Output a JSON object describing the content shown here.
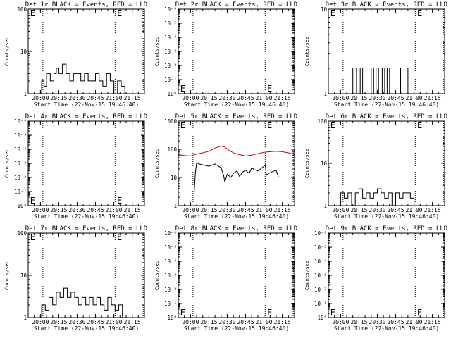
{
  "panel_x_tick_labels": [
    "20:00",
    "20:15",
    "20:30",
    "20:45",
    "21:00",
    "21:15"
  ],
  "colors": {
    "events": "#000000",
    "lld": "#cc0000",
    "axes": "#000000",
    "background": "#ffffff"
  },
  "chart_data": [
    {
      "type": "line",
      "title": "Det 1r BLACK = Events, RED = LLD",
      "xlabel": "Start Time (22-Nov-15 19:46:40)",
      "ylabel": "Counts/sec",
      "scale": "log",
      "xlim": [
        "19:50",
        "21:25"
      ],
      "ylim": [
        1,
        100
      ],
      "yticks": [
        "1",
        "10",
        "100"
      ],
      "x_tick_labels": [
        "20:00",
        "20:15",
        "20:30",
        "20:45",
        "21:00",
        "21:15"
      ],
      "vlines": [
        "20:02",
        "21:01",
        "21:24"
      ],
      "e_markers": [
        {
          "x": "19:51",
          "y": "top"
        },
        {
          "x": "21:02",
          "y": "top"
        }
      ],
      "series": [
        {
          "color": "#000000",
          "style": "steps",
          "x": [
            "19:59",
            "20:01",
            "20:03",
            "20:05",
            "20:08",
            "20:11",
            "20:13",
            "20:15",
            "20:18",
            "20:21",
            "20:24",
            "20:27",
            "20:30",
            "20:33",
            "20:36",
            "20:39",
            "20:42",
            "20:45",
            "20:48",
            "20:51",
            "20:54",
            "20:57",
            "21:00",
            "21:03",
            "21:06",
            "21:09"
          ],
          "y": [
            1,
            2,
            1.5,
            3,
            2,
            3,
            4,
            3,
            5,
            3,
            2,
            3,
            3,
            2,
            3,
            2,
            2,
            3,
            2,
            1.5,
            3,
            2,
            1,
            2,
            1.5,
            1
          ]
        }
      ]
    },
    {
      "type": "line",
      "title": "Det 2r BLACK = Events, RED = LLD",
      "xlabel": "Start Time (22-Nov-15 19:46:40)",
      "ylabel": "Counts/sec",
      "scale": "log",
      "xlim": [
        "19:50",
        "21:25"
      ],
      "ylim": [
        1,
        1000000
      ],
      "yticks": [
        "10⁰",
        "10⁻¹",
        "10⁻²",
        "10⁻³",
        "10⁻⁴",
        "10⁻⁵",
        "10⁻⁶"
      ],
      "x_tick_labels": [
        "20:00",
        "20:15",
        "20:30",
        "20:45",
        "21:00",
        "21:15"
      ],
      "vlines": [
        "20:02",
        "21:01",
        "21:24"
      ],
      "e_markers": [
        {
          "x": "19:51",
          "y": "bottom"
        },
        {
          "x": "21:02",
          "y": "bottom"
        }
      ],
      "series": []
    },
    {
      "type": "line",
      "title": "Det 3r BLACK = Events, RED = LLD",
      "xlabel": "Start Time (22-Nov-15 19:46:40)",
      "ylabel": "Counts/sec",
      "scale": "log",
      "xlim": [
        "19:50",
        "21:25"
      ],
      "ylim": [
        1,
        10
      ],
      "yticks": [
        "1",
        "10"
      ],
      "x_tick_labels": [
        "20:00",
        "20:15",
        "20:30",
        "20:45",
        "21:00",
        "21:15"
      ],
      "vlines": [
        "20:02",
        "21:01",
        "21:24"
      ],
      "e_markers": [
        {
          "x": "19:51",
          "y": "top"
        },
        {
          "x": "21:02",
          "y": "top"
        }
      ],
      "series": [
        {
          "color": "#000000",
          "style": "spikes",
          "x": [
            "20:10",
            "20:13",
            "20:16",
            "20:18",
            "20:25",
            "20:27",
            "20:29",
            "20:31",
            "20:34",
            "20:36",
            "20:38",
            "20:40",
            "20:49",
            "20:55"
          ],
          "y": [
            2,
            2,
            2,
            2,
            2,
            2,
            2,
            2,
            2,
            2,
            2,
            2,
            2,
            2
          ]
        }
      ]
    },
    {
      "type": "line",
      "title": "Det 4r BLACK = Events, RED = LLD",
      "xlabel": "Start Time (22-Nov-15 19:46:40)",
      "ylabel": "Counts/sec",
      "scale": "log",
      "xlim": [
        "19:50",
        "21:25"
      ],
      "ylim": [
        1,
        1000000
      ],
      "yticks": [
        "10⁰",
        "10⁻¹",
        "10⁻²",
        "10⁻³",
        "10⁻⁴",
        "10⁻⁵",
        "10⁻⁶"
      ],
      "x_tick_labels": [
        "20:00",
        "20:15",
        "20:30",
        "20:45",
        "21:00",
        "21:15"
      ],
      "vlines": [
        "20:02",
        "21:01",
        "21:24"
      ],
      "e_markers": [
        {
          "x": "19:51",
          "y": "bottom"
        },
        {
          "x": "21:02",
          "y": "bottom"
        }
      ],
      "series": []
    },
    {
      "type": "line",
      "title": "Det 5r BLACK = Events, RED = LLD",
      "xlabel": "Start Time (22-Nov-15 19:46:40)",
      "ylabel": "Counts/sec",
      "scale": "log",
      "xlim": [
        "19:50",
        "21:25"
      ],
      "ylim": [
        1,
        1000
      ],
      "yticks": [
        "1",
        "10",
        "100",
        "1000"
      ],
      "x_tick_labels": [
        "20:00",
        "20:15",
        "20:30",
        "20:45",
        "21:00",
        "21:15"
      ],
      "vlines": [
        "20:02",
        "21:01",
        "21:24"
      ],
      "e_markers": [
        {
          "x": "19:51",
          "y": "top"
        },
        {
          "x": "21:02",
          "y": "top"
        }
      ],
      "series": [
        {
          "color": "#cc0000",
          "style": "line",
          "x": [
            "19:50",
            "19:55",
            "20:00",
            "20:05",
            "20:10",
            "20:15",
            "20:20",
            "20:25",
            "20:28",
            "20:32",
            "20:36",
            "20:40",
            "20:45",
            "20:50",
            "20:55",
            "21:00",
            "21:05",
            "21:10",
            "21:15",
            "21:20",
            "21:25"
          ],
          "y": [
            65,
            60,
            58,
            68,
            75,
            85,
            110,
            130,
            120,
            88,
            72,
            65,
            58,
            62,
            70,
            78,
            82,
            85,
            82,
            75,
            65
          ]
        },
        {
          "color": "#000000",
          "style": "line",
          "x": [
            "20:03",
            "20:04",
            "20:05",
            "20:07",
            "20:10",
            "20:15",
            "20:20",
            "20:25",
            "20:27",
            "20:28",
            "20:30",
            "20:33",
            "20:35",
            "20:38",
            "20:40",
            "20:43",
            "20:45",
            "20:48",
            "20:50",
            "20:52",
            "20:55",
            "21:00",
            "21:01",
            "21:02",
            "21:04",
            "21:07",
            "21:10",
            "21:12"
          ],
          "y": [
            3,
            15,
            33,
            30,
            28,
            25,
            30,
            22,
            12,
            7,
            13,
            10,
            14,
            17,
            11,
            16,
            18,
            14,
            22,
            19,
            17,
            25,
            28,
            12,
            14,
            16,
            18,
            10
          ]
        }
      ]
    },
    {
      "type": "line",
      "title": "Det 6r BLACK = Events, RED = LLD",
      "xlabel": "Start Time (22-Nov-15 19:46:40)",
      "ylabel": "Counts/sec",
      "scale": "log",
      "xlim": [
        "19:50",
        "21:25"
      ],
      "ylim": [
        1,
        100
      ],
      "yticks": [
        "1",
        "10",
        "100"
      ],
      "x_tick_labels": [
        "20:00",
        "20:15",
        "20:30",
        "20:45",
        "21:00",
        "21:15"
      ],
      "vlines": [
        "20:02",
        "21:01",
        "21:24"
      ],
      "e_markers": [
        {
          "x": "19:51",
          "y": "top"
        },
        {
          "x": "21:02",
          "y": "top"
        }
      ],
      "series": [
        {
          "color": "#cc0000",
          "style": "line",
          "x": [
            "19:50",
            "19:52",
            "19:54",
            "19:56",
            "19:58",
            "20:00",
            "20:02",
            "20:04"
          ],
          "y": [
            100,
            100,
            98,
            100,
            99,
            100,
            100,
            100
          ]
        },
        {
          "color": "#000000",
          "style": "steps",
          "x": [
            "19:58",
            "20:00",
            "20:03",
            "20:06",
            "20:09",
            "20:12",
            "20:15",
            "20:18",
            "20:21",
            "20:24",
            "20:27",
            "20:30",
            "20:33",
            "20:36",
            "20:39",
            "20:42",
            "20:45",
            "20:48",
            "20:51",
            "20:54",
            "20:57",
            "21:00"
          ],
          "y": [
            1,
            2,
            1.5,
            2,
            1,
            2,
            2.5,
            1.5,
            2,
            1.5,
            2,
            2.5,
            2,
            1.5,
            2,
            1,
            2,
            1.5,
            2,
            2,
            1.5,
            1
          ]
        }
      ]
    },
    {
      "type": "line",
      "title": "Det 7r BLACK = Events, RED = LLD",
      "xlabel": "Start Time (22-Nov-15 19:46:40)",
      "ylabel": "Counts/sec",
      "scale": "log",
      "xlim": [
        "19:50",
        "21:25"
      ],
      "ylim": [
        1,
        100
      ],
      "yticks": [
        "1",
        "10",
        "100"
      ],
      "x_tick_labels": [
        "20:00",
        "20:15",
        "20:30",
        "20:45",
        "21:00",
        "21:15"
      ],
      "vlines": [
        "20:02",
        "21:01",
        "21:24"
      ],
      "e_markers": [
        {
          "x": "19:51",
          "y": "top"
        },
        {
          "x": "21:02",
          "y": "top"
        }
      ],
      "series": [
        {
          "color": "#000000",
          "style": "steps",
          "x": [
            "19:58",
            "20:01",
            "20:04",
            "20:07",
            "20:10",
            "20:13",
            "20:16",
            "20:19",
            "20:22",
            "20:25",
            "20:28",
            "20:31",
            "20:34",
            "20:37",
            "20:40",
            "20:43",
            "20:46",
            "20:49",
            "20:52",
            "20:55",
            "20:58",
            "21:01",
            "21:04",
            "21:07"
          ],
          "y": [
            1,
            2,
            1.5,
            3,
            2,
            4,
            3,
            5,
            3,
            4,
            3,
            2,
            3,
            2,
            3,
            2,
            3,
            2,
            1.5,
            3,
            2,
            1.5,
            2,
            1
          ]
        }
      ]
    },
    {
      "type": "line",
      "title": "Det 8r BLACK = Events, RED = LLD",
      "xlabel": "Start Time (22-Nov-15 19:46:40)",
      "ylabel": "Counts/sec",
      "scale": "log",
      "xlim": [
        "19:50",
        "21:25"
      ],
      "ylim": [
        1,
        1000000
      ],
      "yticks": [
        "10⁰",
        "10⁻¹",
        "10⁻²",
        "10⁻³",
        "10⁻⁴",
        "10⁻⁵",
        "10⁻⁶"
      ],
      "x_tick_labels": [
        "20:00",
        "20:15",
        "20:30",
        "20:45",
        "21:00",
        "21:15"
      ],
      "vlines": [
        "20:02",
        "21:01",
        "21:24"
      ],
      "e_markers": [
        {
          "x": "19:51",
          "y": "bottom"
        },
        {
          "x": "21:02",
          "y": "bottom"
        }
      ],
      "series": []
    },
    {
      "type": "line",
      "title": "Det 9r BLACK = Events, RED = LLD",
      "xlabel": "Start Time (22-Nov-15 19:46:40)",
      "ylabel": "Counts/sec",
      "scale": "log",
      "xlim": [
        "19:50",
        "21:25"
      ],
      "ylim": [
        1,
        1000000
      ],
      "yticks": [
        "10⁰",
        "10⁻¹",
        "10⁻²",
        "10⁻³",
        "10⁻⁴",
        "10⁻⁵",
        "10⁻⁶"
      ],
      "x_tick_labels": [
        "20:00",
        "20:15",
        "20:30",
        "20:45",
        "21:00",
        "21:15"
      ],
      "vlines": [
        "20:02",
        "21:01",
        "21:24"
      ],
      "e_markers": [
        {
          "x": "19:51",
          "y": "bottom"
        },
        {
          "x": "21:02",
          "y": "bottom"
        }
      ],
      "series": []
    }
  ]
}
